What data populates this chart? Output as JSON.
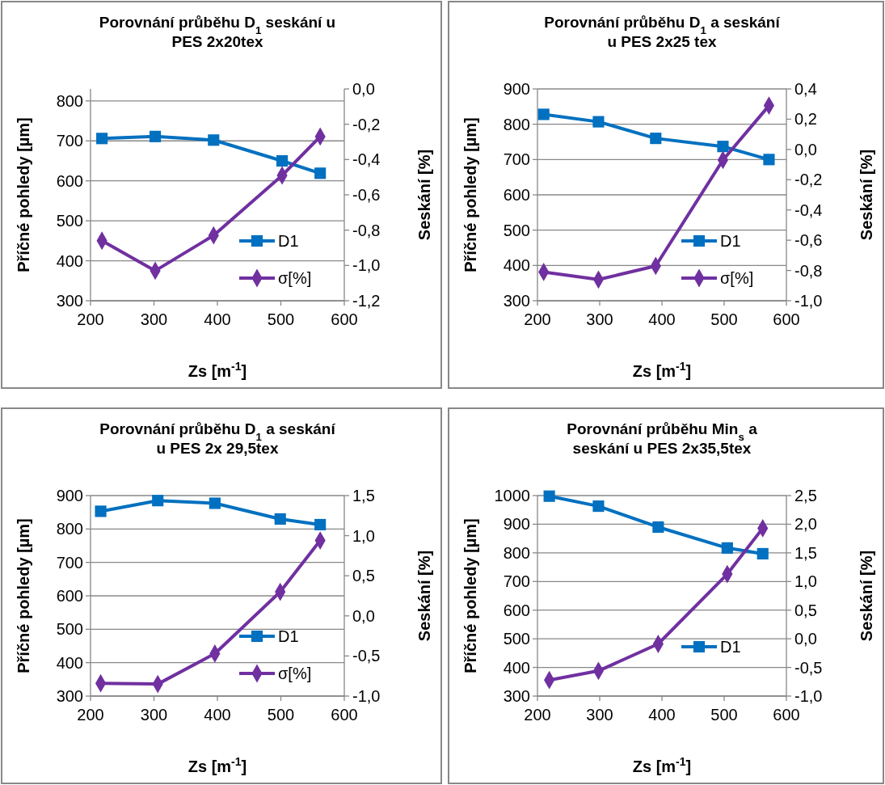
{
  "chart_data": [
    {
      "type": "line",
      "title": "Porovnání průběhu D$_{1}$ seskání u\nPES 2x20tex",
      "xlabel": "Zs [m$^{-1}$]",
      "ylabel": "Příčné pohledy [µm]",
      "y2label": "Seskání [%]",
      "xlim": [
        200,
        600
      ],
      "xticks": [
        200,
        300,
        400,
        500,
        600
      ],
      "ylim": [
        300,
        830
      ],
      "yticks": [
        300,
        400,
        500,
        600,
        700,
        800
      ],
      "y2lim": [
        -1.2,
        0
      ],
      "y2ticks": [
        {
          "value": -1.2,
          "label": "-1,2"
        },
        {
          "value": -1.0,
          "label": "-1,0"
        },
        {
          "value": -0.8,
          "label": "-0,8"
        },
        {
          "value": -0.6,
          "label": "-0,6"
        },
        {
          "value": -0.4,
          "label": "-0,4"
        },
        {
          "value": -0.2,
          "label": "-0,2"
        },
        {
          "value": 0,
          "label": "0,0"
        }
      ],
      "grid": "y",
      "legend": "bottom right",
      "series": [
        {
          "name": "D1",
          "color": "#0070c0",
          "marker": "square",
          "x": [
            218,
            302,
            394,
            502,
            562
          ],
          "values": [
            706,
            711,
            702,
            650,
            619
          ]
        },
        {
          "name": "σ[%]",
          "color": "#7030a0",
          "marker": "diamond",
          "axis": "y2",
          "x": [
            218,
            302,
            394,
            502,
            562
          ],
          "values": [
            -0.86,
            -1.03,
            -0.83,
            -0.49,
            -0.27
          ]
        }
      ]
    },
    {
      "type": "line",
      "title": "Porovnání průběhu D$_{1}$ a seskání\nu PES 2x25 tex",
      "xlabel": "Zs [m$^{-1}$]",
      "ylabel": "Příčné pohledy [µm]",
      "y2label": "Seskání [%]",
      "xlim": [
        200,
        600
      ],
      "xticks": [
        200,
        300,
        400,
        500,
        600
      ],
      "ylim": [
        300,
        900
      ],
      "yticks": [
        300,
        400,
        500,
        600,
        700,
        800,
        900
      ],
      "y2lim": [
        -1.0,
        0.4
      ],
      "y2ticks": [
        {
          "value": -1.0,
          "label": "-1,0"
        },
        {
          "value": -0.8,
          "label": "-0,8"
        },
        {
          "value": -0.6,
          "label": "-0,6"
        },
        {
          "value": -0.4,
          "label": "-0,4"
        },
        {
          "value": -0.2,
          "label": "-0,2"
        },
        {
          "value": 0,
          "label": "0,0"
        },
        {
          "value": 0.2,
          "label": "0,2"
        },
        {
          "value": 0.4,
          "label": "0,4"
        }
      ],
      "grid": "y",
      "legend": "bottom right",
      "series": [
        {
          "name": "D1",
          "color": "#0070c0",
          "marker": "square",
          "x": [
            210,
            298,
            390,
            498,
            572
          ],
          "values": [
            828,
            807,
            760,
            737,
            700
          ]
        },
        {
          "name": "σ[%]",
          "color": "#7030a0",
          "marker": "diamond",
          "axis": "y2",
          "x": [
            210,
            298,
            390,
            498,
            572
          ],
          "values": [
            -0.81,
            -0.86,
            -0.77,
            -0.07,
            0.29
          ]
        }
      ]
    },
    {
      "type": "line",
      "title": "Porovnání průběhu D$_{1}$ a seskání\nu PES 2x 29,5tex",
      "xlabel": "Zs [m$^{-1}$]",
      "ylabel": "Příčné pohledy [µm]",
      "y2label": "Seskání [%]",
      "xlim": [
        200,
        600
      ],
      "xticks": [
        200,
        300,
        400,
        500,
        600
      ],
      "ylim": [
        300,
        900
      ],
      "yticks": [
        300,
        400,
        500,
        600,
        700,
        800,
        900
      ],
      "y2lim": [
        -1.0,
        1.5
      ],
      "y2ticks": [
        {
          "value": -1.0,
          "label": "-1,0"
        },
        {
          "value": -0.5,
          "label": "-0,5"
        },
        {
          "value": 0,
          "label": "0,0"
        },
        {
          "value": 0.5,
          "label": "0,5"
        },
        {
          "value": 1.0,
          "label": "1,0"
        },
        {
          "value": 1.5,
          "label": "1,5"
        }
      ],
      "grid": "y",
      "legend": "bottom right",
      "series": [
        {
          "name": "D1",
          "color": "#0070c0",
          "marker": "square",
          "x": [
            216,
            306,
            396,
            499,
            562
          ],
          "values": [
            853,
            885,
            877,
            830,
            813
          ]
        },
        {
          "name": "σ[%]",
          "color": "#7030a0",
          "marker": "diamond",
          "axis": "y2",
          "x": [
            216,
            306,
            396,
            499,
            562
          ],
          "values": [
            -0.84,
            -0.85,
            -0.47,
            0.3,
            0.94
          ]
        }
      ]
    },
    {
      "type": "line",
      "title": "Porovnání průběhu Min$_{s}$ a\nseskání u PES 2x35,5tex",
      "xlabel": "Zs [m$^{-1}$]",
      "ylabel": "Příčné pohledy [µm]",
      "y2label": "Seskání [%]",
      "xlim": [
        200,
        600
      ],
      "xticks": [
        200,
        300,
        400,
        500,
        600
      ],
      "ylim": [
        300,
        1000
      ],
      "yticks": [
        300,
        400,
        500,
        600,
        700,
        800,
        900,
        1000
      ],
      "y2lim": [
        -1.0,
        2.5
      ],
      "y2ticks": [
        {
          "value": -1.0,
          "label": "-1,0"
        },
        {
          "value": -0.5,
          "label": "-0,5"
        },
        {
          "value": 0,
          "label": "0,0"
        },
        {
          "value": 0.5,
          "label": "0,5"
        },
        {
          "value": 1.0,
          "label": "1,0"
        },
        {
          "value": 1.5,
          "label": "1,5"
        },
        {
          "value": 2.0,
          "label": "2,0"
        },
        {
          "value": 2.5,
          "label": "2,5"
        }
      ],
      "grid": "y",
      "legend": "right",
      "series": [
        {
          "name": "D1",
          "color": "#0070c0",
          "marker": "square",
          "x": [
            219,
            298,
            394,
            505,
            562
          ],
          "values": [
            998,
            963,
            890,
            817,
            797
          ]
        },
        {
          "color": "#7030a0",
          "marker": "diamond",
          "axis": "y2",
          "x": [
            219,
            298,
            394,
            505,
            562
          ],
          "values": [
            -0.72,
            -0.56,
            -0.09,
            1.13,
            1.93
          ]
        }
      ]
    }
  ]
}
